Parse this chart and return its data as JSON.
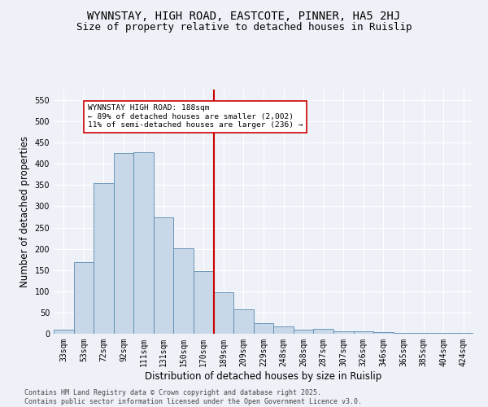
{
  "title": "WYNNSTAY, HIGH ROAD, EASTCOTE, PINNER, HA5 2HJ",
  "subtitle": "Size of property relative to detached houses in Ruislip",
  "xlabel": "Distribution of detached houses by size in Ruislip",
  "ylabel": "Number of detached properties",
  "categories": [
    "33sqm",
    "53sqm",
    "72sqm",
    "92sqm",
    "111sqm",
    "131sqm",
    "150sqm",
    "170sqm",
    "189sqm",
    "209sqm",
    "229sqm",
    "248sqm",
    "268sqm",
    "287sqm",
    "307sqm",
    "326sqm",
    "346sqm",
    "365sqm",
    "385sqm",
    "404sqm",
    "424sqm"
  ],
  "values": [
    10,
    168,
    355,
    425,
    428,
    275,
    202,
    148,
    98,
    57,
    25,
    18,
    10,
    11,
    6,
    5,
    3,
    1,
    2,
    1,
    1
  ],
  "bar_color": "#c8d8e8",
  "bar_edge_color": "#5a8ab0",
  "marker_index": 8,
  "marker_color": "#cc0000",
  "annotation_text": "WYNNSTAY HIGH ROAD: 188sqm\n← 89% of detached houses are smaller (2,002)\n11% of semi-detached houses are larger (236) →",
  "annotation_box_color": "#ffffff",
  "annotation_box_edge": "#cc0000",
  "ylim": [
    0,
    575
  ],
  "yticks": [
    0,
    50,
    100,
    150,
    200,
    250,
    300,
    350,
    400,
    450,
    500,
    550
  ],
  "background_color": "#eef2f8",
  "grid_color": "#ffffff",
  "footer": "Contains HM Land Registry data © Crown copyright and database right 2025.\nContains public sector information licensed under the Open Government Licence v3.0.",
  "title_fontsize": 10,
  "subtitle_fontsize": 9,
  "label_fontsize": 8.5,
  "tick_fontsize": 7,
  "footer_fontsize": 6
}
